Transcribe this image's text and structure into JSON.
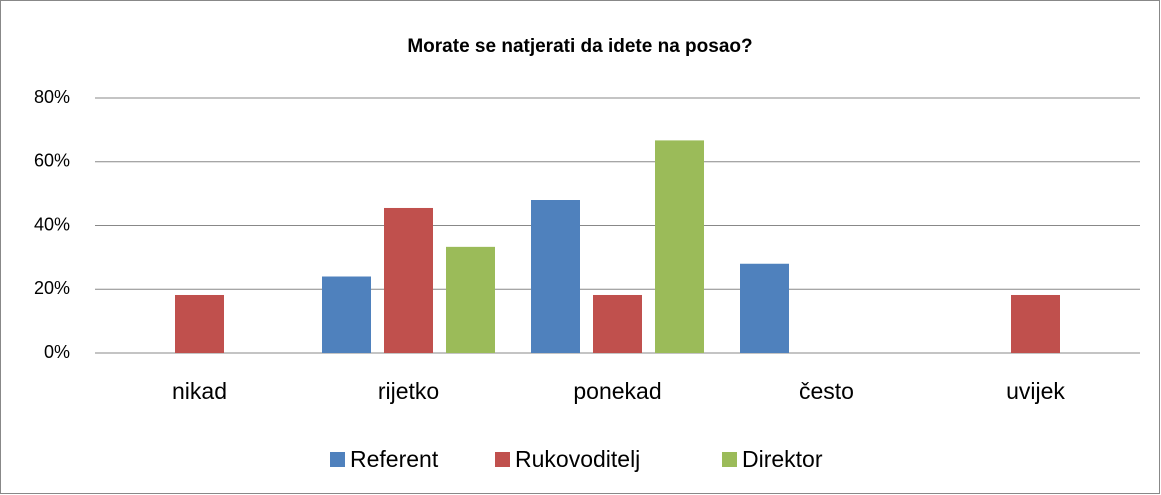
{
  "chart_data": {
    "type": "bar",
    "title": "Morate se natjerati da idete na posao?",
    "categories": [
      "nikad",
      "rijetko",
      "ponekad",
      "često",
      "uvijek"
    ],
    "series": [
      {
        "name": "Referent",
        "color": "#4f81bd",
        "values": [
          0,
          24,
          48,
          28,
          0
        ]
      },
      {
        "name": "Rukovoditelj",
        "color": "#c0504d",
        "values": [
          18.2,
          45.5,
          18.2,
          0,
          18.2
        ]
      },
      {
        "name": "Direktor",
        "color": "#9bbb59",
        "values": [
          0,
          33.3,
          66.7,
          0,
          0
        ]
      }
    ],
    "ylim": [
      0,
      80
    ],
    "yticks": [
      {
        "value": 0,
        "label": "0%"
      },
      {
        "value": 20,
        "label": "20%"
      },
      {
        "value": 40,
        "label": "40%"
      },
      {
        "value": 60,
        "label": "60%"
      },
      {
        "value": 80,
        "label": "80%"
      }
    ],
    "grid": true,
    "legend": "bottom"
  }
}
